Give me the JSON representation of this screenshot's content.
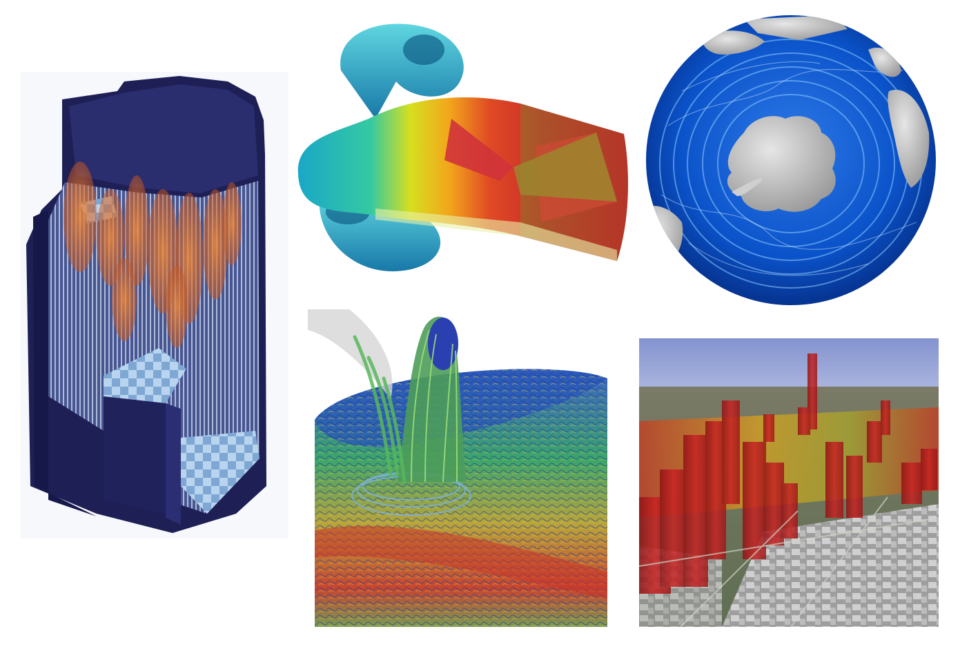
{
  "panels": [
    {
      "id": "reactor",
      "subject": "reactor-core-cutaway",
      "colors": {
        "body": "#1b1d52",
        "rods": "#d8692d",
        "floor": "#a9c8e6"
      }
    },
    {
      "id": "nozzle",
      "subject": "flow-through-duct",
      "colors": {
        "cool": "#1fa9c4",
        "mid": "#e8d21c",
        "hot": "#d22b2b"
      }
    },
    {
      "id": "globe",
      "subject": "southern-ocean-currents",
      "colors": {
        "ocean": "#0a4fc8",
        "land": "#b9b9b9",
        "swirl": "#7fc3ff"
      }
    },
    {
      "id": "vortex",
      "subject": "turbulent-vortex-column",
      "colors": {
        "low": "#1e4fb0",
        "mid": "#2fa85a",
        "high": "#d63a2a"
      }
    },
    {
      "id": "city",
      "subject": "urban-3d-data-overlay",
      "colors": {
        "sky": "#8f9fd6",
        "bars": "#b01c1c",
        "buildings": "#bdbdbd"
      }
    }
  ]
}
